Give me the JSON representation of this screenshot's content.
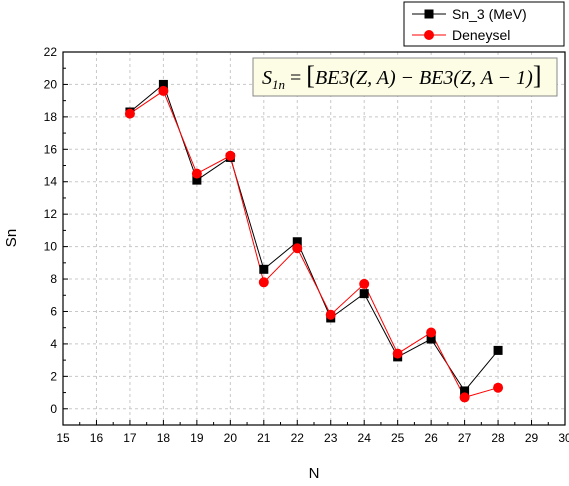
{
  "chart_data": {
    "type": "line",
    "title": "",
    "xlabel": "N",
    "ylabel": "Sn",
    "xlim": [
      15,
      30
    ],
    "ylim": [
      -1,
      22
    ],
    "xticks": [
      15,
      16,
      17,
      18,
      19,
      20,
      21,
      22,
      23,
      24,
      25,
      26,
      27,
      28,
      29,
      30
    ],
    "yticks": [
      0,
      2,
      4,
      6,
      8,
      10,
      12,
      14,
      16,
      18,
      20,
      22
    ],
    "grid": true,
    "legend_position": "top-right",
    "series": [
      {
        "name": "Sn_3 (MeV)",
        "marker": "square",
        "color": "#000000",
        "x": [
          17,
          18,
          19,
          20,
          21,
          22,
          23,
          24,
          25,
          26,
          27,
          28
        ],
        "y": [
          18.3,
          20.0,
          14.1,
          15.5,
          8.6,
          10.3,
          5.6,
          7.1,
          3.2,
          4.3,
          1.1,
          3.6
        ]
      },
      {
        "name": "Deneysel",
        "marker": "circle",
        "color": "#ff0000",
        "x": [
          17,
          18,
          19,
          20,
          21,
          22,
          23,
          24,
          25,
          26,
          27,
          28
        ],
        "y": [
          18.2,
          19.6,
          14.5,
          15.6,
          7.8,
          9.9,
          5.8,
          7.7,
          3.4,
          4.7,
          0.7,
          1.3
        ]
      }
    ],
    "annotation": {
      "lhs_symbol": "S",
      "lhs_subscript": "1n",
      "equals": "=",
      "lbracket": "[",
      "term1": "BE3(Z, A)",
      "minus": "−",
      "term2": "BE3(Z, A − 1)",
      "rbracket": "]"
    }
  }
}
